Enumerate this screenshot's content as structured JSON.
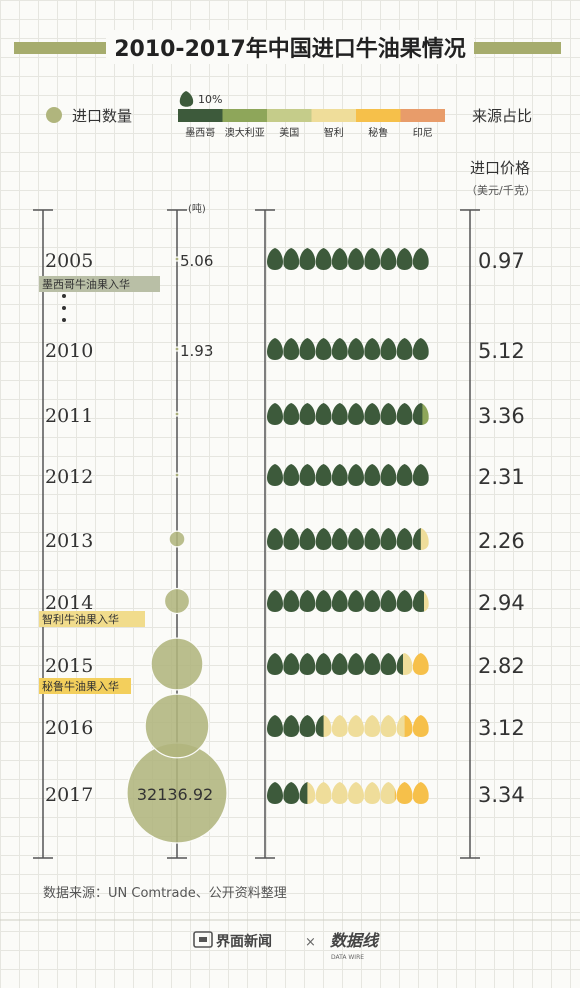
{
  "title": "2010-2017年中国进口牛油果情况",
  "legend": {
    "quantity_label": "进口数量",
    "unit_icon_label": "10%",
    "share_label": "来源占比",
    "sources": [
      {
        "name": "墨西哥",
        "color": "#3d5a3b"
      },
      {
        "name": "澳大利亚",
        "color": "#8ea65a"
      },
      {
        "name": "美国",
        "color": "#c5cc8a"
      },
      {
        "name": "智利",
        "color": "#efdd9a"
      },
      {
        "name": "秘鲁",
        "color": "#f6c04a"
      },
      {
        "name": "印尼",
        "color": "#e89c6a"
      }
    ]
  },
  "price_header": "进口价格",
  "price_unit": "（美元/千克）",
  "quantity_unit": "(吨)",
  "events": [
    {
      "text": "墨西哥牛油果入华",
      "color": "#b9bfa6"
    },
    {
      "text": "智利牛油果入华",
      "color": "#f1dc8c"
    },
    {
      "text": "秘鲁牛油果入华",
      "color": "#f3cf5c"
    }
  ],
  "footer": {
    "source": "数据来源：UN Comtrade、公开资料整理",
    "brand": "界面新闻",
    "times": "×",
    "partner": "数据线",
    "partner_sub": "DATA WIRE"
  },
  "chart_data": {
    "type": "bubble-pictogram",
    "title": "2010-2017年中国进口牛油果情况",
    "years": [
      "2005",
      "2010",
      "2011",
      "2012",
      "2013",
      "2014",
      "2015",
      "2016",
      "2017"
    ],
    "quantity_labels": [
      "5.06",
      "1.93",
      "",
      "",
      "",
      "",
      "",
      "",
      "32136.92"
    ],
    "quantity_tonnes": [
      5.06,
      1.93,
      10,
      25,
      800,
      2000,
      8600,
      13000,
      32136.92
    ],
    "price_usd_per_kg": [
      "0.97",
      "5.12",
      "3.36",
      "2.31",
      "2.26",
      "2.94",
      "2.82",
      "3.12",
      "3.34"
    ],
    "source_share_units": [
      [
        10,
        0,
        0,
        0,
        0,
        0
      ],
      [
        10,
        0,
        0,
        0,
        0,
        0
      ],
      [
        9.6,
        0.4,
        0,
        0,
        0,
        0
      ],
      [
        10,
        0,
        0,
        0,
        0,
        0
      ],
      [
        9.5,
        0,
        0,
        0.5,
        0,
        0
      ],
      [
        9.7,
        0,
        0,
        0.3,
        0,
        0
      ],
      [
        8.4,
        0,
        0,
        0.6,
        1,
        0
      ],
      [
        3.5,
        0,
        0,
        5,
        1.5,
        0
      ],
      [
        2.5,
        0,
        0,
        5.4,
        2.1,
        0
      ]
    ]
  }
}
